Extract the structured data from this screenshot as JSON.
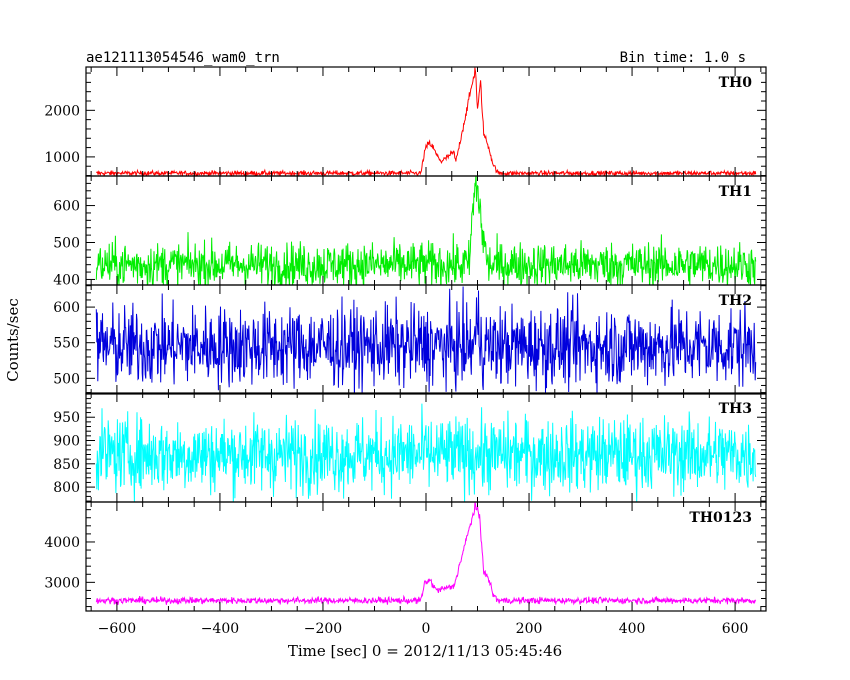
{
  "title_left": "ae121113054546_wam0_trn",
  "title_right": "Bin time: 1.0 s",
  "xlabel": "Time [sec] 0 = 2012/11/13 05:45:46",
  "ylabel": "Counts/sec",
  "chart_data": {
    "type": "line",
    "x_range": [
      -660,
      660
    ],
    "x_ticks": [
      -600,
      -400,
      -200,
      0,
      200,
      400,
      600
    ],
    "x_tick_labels": [
      "−600",
      "−400",
      "−200",
      "0",
      "200",
      "400",
      "600"
    ],
    "panels": [
      {
        "name": "TH0",
        "color": "#ff0000",
        "ylim": [
          590,
          2930
        ],
        "y_ticks": [
          1000,
          2000
        ],
        "minor_step": 200,
        "baseline": 650,
        "noise": 25,
        "events": [
          {
            "t": -2,
            "value": 1150
          },
          {
            "t": 6,
            "value": 1300
          },
          {
            "t": 14,
            "value": 1200
          },
          {
            "t": 20,
            "value": 1050
          },
          {
            "t": 30,
            "value": 900
          },
          {
            "t": 54,
            "value": 1100
          },
          {
            "t": 58,
            "value": 900
          },
          {
            "t": 96,
            "value": 2900
          },
          {
            "t": 100,
            "value": 2000
          },
          {
            "t": 106,
            "value": 2600
          },
          {
            "t": 112,
            "value": 1500
          },
          {
            "t": 122,
            "value": 1200
          },
          {
            "t": 130,
            "value": 850
          }
        ]
      },
      {
        "name": "TH1",
        "color": "#00ee00",
        "ylim": [
          385,
          680
        ],
        "y_ticks": [
          400,
          500,
          600
        ],
        "minor_step": 20,
        "baseline": 440,
        "noise": 30,
        "events": [
          {
            "t": 92,
            "value": 610
          },
          {
            "t": 98,
            "value": 660
          },
          {
            "t": 104,
            "value": 600
          },
          {
            "t": 110,
            "value": 520
          }
        ]
      },
      {
        "name": "TH2",
        "color": "#0000dd",
        "ylim": [
          478,
          631
        ],
        "y_ticks": [
          500,
          550,
          600
        ],
        "minor_step": 10,
        "baseline": 545,
        "noise": 28,
        "events": [
          {
            "t": 100,
            "value": 575
          }
        ]
      },
      {
        "name": "TH3",
        "color": "#00ffff",
        "ylim": [
          768,
          1002
        ],
        "y_ticks": [
          800,
          850,
          900,
          950
        ],
        "minor_step": 10,
        "baseline": 870,
        "noise": 40,
        "events": []
      },
      {
        "name": "TH0123",
        "color": "#ff00ff",
        "ylim": [
          2290,
          4990
        ],
        "y_ticks": [
          3000,
          4000
        ],
        "minor_step": 200,
        "baseline": 2550,
        "noise": 40,
        "events": [
          {
            "t": -2,
            "value": 3000
          },
          {
            "t": 8,
            "value": 3050
          },
          {
            "t": 20,
            "value": 2800
          },
          {
            "t": 54,
            "value": 2900
          },
          {
            "t": 96,
            "value": 4900
          },
          {
            "t": 104,
            "value": 4600
          },
          {
            "t": 112,
            "value": 3300
          },
          {
            "t": 124,
            "value": 3000
          },
          {
            "t": 130,
            "value": 2700
          }
        ]
      }
    ]
  }
}
